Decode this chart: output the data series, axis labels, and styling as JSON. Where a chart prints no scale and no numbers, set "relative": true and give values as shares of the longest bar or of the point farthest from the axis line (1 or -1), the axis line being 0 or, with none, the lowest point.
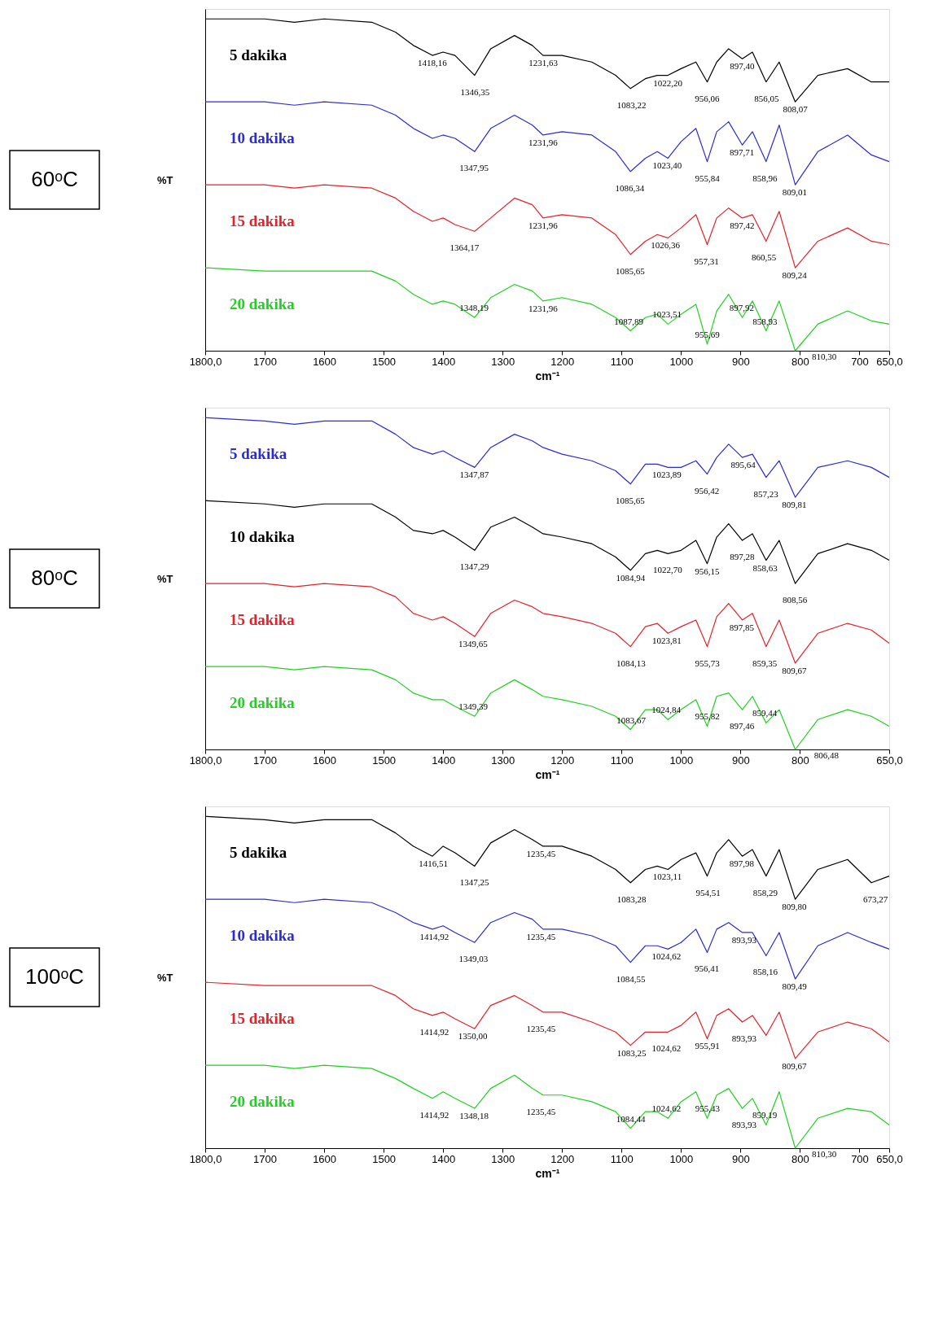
{
  "chart_data": [
    {
      "type": "line",
      "title": "60ᵒC",
      "xlabel": "cm⁻¹",
      "ylabel": "%T",
      "relative": true,
      "legend": false,
      "grid": false,
      "xlim": [
        1800,
        650
      ],
      "xticks": [
        {
          "value": 1800,
          "label": "1800,0"
        },
        1700,
        1600,
        1500,
        1400,
        1300,
        1200,
        1100,
        1000,
        900,
        800,
        700,
        {
          "value": 650,
          "label": "650,0"
        }
      ],
      "x": [
        1800,
        1700,
        1650,
        1600,
        1520,
        1480,
        1450,
        1418,
        1400,
        1380,
        1347,
        1320,
        1280,
        1250,
        1232,
        1200,
        1150,
        1110,
        1085,
        1060,
        1040,
        1022,
        1000,
        975,
        956,
        940,
        920,
        897,
        880,
        857,
        835,
        808,
        770,
        720,
        680,
        650
      ],
      "series": [
        {
          "name": "5 dakika",
          "color": "#000000",
          "values": [
            1.0,
            1.0,
            0.99,
            1.0,
            0.99,
            0.96,
            0.92,
            0.89,
            0.9,
            0.89,
            0.83,
            0.91,
            0.95,
            0.92,
            0.89,
            0.89,
            0.87,
            0.83,
            0.79,
            0.82,
            0.83,
            0.83,
            0.85,
            0.87,
            0.81,
            0.87,
            0.91,
            0.88,
            0.9,
            0.81,
            0.87,
            0.75,
            0.83,
            0.85,
            0.81,
            0.81
          ]
        },
        {
          "name": "10 dakika",
          "color": "#2b2bd9",
          "values": [
            0.75,
            0.75,
            0.74,
            0.75,
            0.74,
            0.71,
            0.67,
            0.64,
            0.65,
            0.64,
            0.6,
            0.67,
            0.71,
            0.68,
            0.65,
            0.66,
            0.65,
            0.6,
            0.54,
            0.58,
            0.6,
            0.58,
            0.63,
            0.67,
            0.57,
            0.66,
            0.69,
            0.62,
            0.66,
            0.57,
            0.68,
            0.5,
            0.6,
            0.65,
            0.59,
            0.57
          ]
        },
        {
          "name": "15 dakika",
          "color": "#e8202a",
          "values": [
            0.5,
            0.5,
            0.49,
            0.5,
            0.49,
            0.46,
            0.42,
            0.39,
            0.4,
            0.38,
            0.36,
            0.4,
            0.46,
            0.44,
            0.4,
            0.41,
            0.4,
            0.35,
            0.29,
            0.33,
            0.35,
            0.34,
            0.37,
            0.41,
            0.32,
            0.4,
            0.43,
            0.4,
            0.41,
            0.33,
            0.42,
            0.25,
            0.33,
            0.37,
            0.33,
            0.32
          ]
        },
        {
          "name": "20 dakika",
          "color": "#1fd21f",
          "values": [
            0.25,
            0.24,
            0.24,
            0.24,
            0.24,
            0.21,
            0.17,
            0.14,
            0.15,
            0.14,
            0.1,
            0.16,
            0.2,
            0.18,
            0.15,
            0.16,
            0.14,
            0.1,
            0.06,
            0.1,
            0.11,
            0.08,
            0.11,
            0.14,
            0.02,
            0.12,
            0.17,
            0.1,
            0.15,
            0.06,
            0.15,
            0.0,
            0.08,
            0.12,
            0.09,
            0.08
          ]
        }
      ],
      "annotations": [
        {
          "text": "1418,16",
          "x": 1418.16,
          "y": 0.89
        },
        {
          "text": "1346,35",
          "x": 1346.35,
          "y": 0.83
        },
        {
          "text": "1231,63",
          "x": 1231.63,
          "y": 0.89
        },
        {
          "text": "1083,22",
          "x": 1083.22,
          "y": 0.79
        },
        {
          "text": "1022,20",
          "x": 1022.2,
          "y": 0.83
        },
        {
          "text": "956,06",
          "x": 956.06,
          "y": 0.81
        },
        {
          "text": "897,40",
          "x": 897.4,
          "y": 0.88
        },
        {
          "text": "856,05",
          "x": 856.05,
          "y": 0.81
        },
        {
          "text": "808,07",
          "x": 808.07,
          "y": 0.75
        },
        {
          "text": "1347,95",
          "x": 1347.95,
          "y": 0.6
        },
        {
          "text": "1231,96",
          "x": 1231.96,
          "y": 0.65
        },
        {
          "text": "1086,34",
          "x": 1086.34,
          "y": 0.54
        },
        {
          "text": "1023,40",
          "x": 1023.4,
          "y": 0.58
        },
        {
          "text": "955,84",
          "x": 955.84,
          "y": 0.57
        },
        {
          "text": "897,71",
          "x": 897.71,
          "y": 0.62
        },
        {
          "text": "858,96",
          "x": 858.96,
          "y": 0.57
        },
        {
          "text": "809,01",
          "x": 809.01,
          "y": 0.5
        },
        {
          "text": "1364,17",
          "x": 1364.17,
          "y": 0.36
        },
        {
          "text": "1231,96",
          "x": 1231.96,
          "y": 0.4
        },
        {
          "text": "1085,65",
          "x": 1085.65,
          "y": 0.29
        },
        {
          "text": "1026,36",
          "x": 1026.36,
          "y": 0.34
        },
        {
          "text": "957,31",
          "x": 957.31,
          "y": 0.32
        },
        {
          "text": "897,42",
          "x": 897.42,
          "y": 0.4
        },
        {
          "text": "860,55",
          "x": 860.55,
          "y": 0.33
        },
        {
          "text": "809,24",
          "x": 809.24,
          "y": 0.25
        },
        {
          "text": "1348,19",
          "x": 1348.19,
          "y": 0.1
        },
        {
          "text": "1231,96",
          "x": 1231.96,
          "y": 0.15
        },
        {
          "text": "1087,89",
          "x": 1087.89,
          "y": 0.06
        },
        {
          "text": "1023,51",
          "x": 1023.51,
          "y": 0.08
        },
        {
          "text": "955,69",
          "x": 955.69,
          "y": 0.02
        },
        {
          "text": "897,92",
          "x": 897.92,
          "y": 0.1
        },
        {
          "text": "858,93",
          "x": 858.93,
          "y": 0.06
        },
        {
          "text": "810,30",
          "x": 810.3,
          "y": 0.0
        }
      ]
    },
    {
      "type": "line",
      "title": "80ᵒC",
      "xlabel": "cm⁻¹",
      "ylabel": "%T",
      "relative": true,
      "legend": false,
      "grid": false,
      "xlim": [
        1800,
        650
      ],
      "xticks": [
        {
          "value": 1800,
          "label": "1800,0"
        },
        1700,
        1600,
        1500,
        1400,
        1300,
        1200,
        1100,
        1000,
        900,
        800,
        {
          "value": 650,
          "label": "650,0"
        }
      ],
      "x": [
        1800,
        1700,
        1650,
        1600,
        1520,
        1480,
        1450,
        1418,
        1400,
        1380,
        1347,
        1320,
        1280,
        1250,
        1232,
        1200,
        1150,
        1110,
        1085,
        1060,
        1040,
        1022,
        1000,
        975,
        956,
        940,
        920,
        897,
        880,
        857,
        835,
        808,
        770,
        720,
        680,
        650
      ],
      "series": [
        {
          "name": "5 dakika",
          "color": "#2b2bd9",
          "values": [
            1.0,
            0.99,
            0.98,
            0.99,
            0.99,
            0.95,
            0.91,
            0.89,
            0.9,
            0.88,
            0.85,
            0.91,
            0.95,
            0.93,
            0.91,
            0.89,
            0.87,
            0.84,
            0.8,
            0.86,
            0.86,
            0.85,
            0.85,
            0.87,
            0.83,
            0.88,
            0.92,
            0.88,
            0.89,
            0.82,
            0.87,
            0.76,
            0.85,
            0.87,
            0.85,
            0.82
          ]
        },
        {
          "name": "10 dakika",
          "color": "#000000",
          "values": [
            0.75,
            0.74,
            0.73,
            0.74,
            0.74,
            0.7,
            0.66,
            0.65,
            0.66,
            0.64,
            0.6,
            0.67,
            0.7,
            0.67,
            0.65,
            0.64,
            0.62,
            0.58,
            0.54,
            0.59,
            0.6,
            0.59,
            0.6,
            0.63,
            0.56,
            0.64,
            0.68,
            0.63,
            0.65,
            0.57,
            0.63,
            0.5,
            0.59,
            0.62,
            0.6,
            0.57
          ]
        },
        {
          "name": "15 dakika",
          "color": "#e8202a",
          "values": [
            0.5,
            0.5,
            0.49,
            0.5,
            0.49,
            0.46,
            0.41,
            0.39,
            0.4,
            0.38,
            0.34,
            0.41,
            0.45,
            0.43,
            0.41,
            0.4,
            0.38,
            0.35,
            0.31,
            0.37,
            0.38,
            0.35,
            0.37,
            0.39,
            0.31,
            0.4,
            0.44,
            0.39,
            0.41,
            0.31,
            0.39,
            0.26,
            0.35,
            0.38,
            0.36,
            0.32
          ]
        },
        {
          "name": "20 dakika",
          "color": "#1fd21f",
          "values": [
            0.25,
            0.25,
            0.24,
            0.25,
            0.24,
            0.21,
            0.17,
            0.15,
            0.15,
            0.13,
            0.1,
            0.17,
            0.21,
            0.18,
            0.16,
            0.15,
            0.13,
            0.1,
            0.06,
            0.12,
            0.12,
            0.09,
            0.12,
            0.15,
            0.07,
            0.16,
            0.17,
            0.12,
            0.16,
            0.08,
            0.12,
            0.0,
            0.09,
            0.12,
            0.1,
            0.07
          ]
        }
      ],
      "annotations": [
        {
          "text": "1347,87",
          "x": 1347.87,
          "y": 0.85
        },
        {
          "text": "1085,65",
          "x": 1085.65,
          "y": 0.8
        },
        {
          "text": "1023,89",
          "x": 1023.89,
          "y": 0.85
        },
        {
          "text": "956,42",
          "x": 956.42,
          "y": 0.83
        },
        {
          "text": "895,64",
          "x": 895.64,
          "y": 0.88
        },
        {
          "text": "857,23",
          "x": 857.23,
          "y": 0.82
        },
        {
          "text": "809,81",
          "x": 809.81,
          "y": 0.76
        },
        {
          "text": "1347,29",
          "x": 1347.29,
          "y": 0.6
        },
        {
          "text": "1084,94",
          "x": 1084.94,
          "y": 0.54
        },
        {
          "text": "1022,70",
          "x": 1022.7,
          "y": 0.59
        },
        {
          "text": "956,15",
          "x": 956.15,
          "y": 0.56
        },
        {
          "text": "897,28",
          "x": 897.28,
          "y": 0.63
        },
        {
          "text": "858,63",
          "x": 858.63,
          "y": 0.57
        },
        {
          "text": "808,56",
          "x": 808.56,
          "y": 0.5
        },
        {
          "text": "1349,65",
          "x": 1349.65,
          "y": 0.34
        },
        {
          "text": "1084,13",
          "x": 1084.13,
          "y": 0.31
        },
        {
          "text": "1023,81",
          "x": 1023.81,
          "y": 0.35
        },
        {
          "text": "955,73",
          "x": 955.73,
          "y": 0.31
        },
        {
          "text": "897,85",
          "x": 897.85,
          "y": 0.39
        },
        {
          "text": "859,35",
          "x": 859.35,
          "y": 0.31
        },
        {
          "text": "809,67",
          "x": 809.67,
          "y": 0.26
        },
        {
          "text": "1349,39",
          "x": 1349.39,
          "y": 0.1
        },
        {
          "text": "1083,67",
          "x": 1083.67,
          "y": 0.06
        },
        {
          "text": "1024,84",
          "x": 1024.84,
          "y": 0.09
        },
        {
          "text": "955,82",
          "x": 955.82,
          "y": 0.07
        },
        {
          "text": "897,46",
          "x": 897.46,
          "y": 0.12
        },
        {
          "text": "859,44",
          "x": 859.44,
          "y": 0.08
        },
        {
          "text": "806,48",
          "x": 806.48,
          "y": 0.0
        }
      ]
    },
    {
      "type": "line",
      "title": "100ᵒC",
      "xlabel": "cm⁻¹",
      "ylabel": "%T",
      "relative": true,
      "legend": false,
      "grid": false,
      "xlim": [
        1800,
        650
      ],
      "xticks": [
        {
          "value": 1800,
          "label": "1800,0"
        },
        1700,
        1600,
        1500,
        1400,
        1300,
        1200,
        1100,
        1000,
        900,
        800,
        700,
        {
          "value": 650,
          "label": "650,0"
        }
      ],
      "x": [
        1800,
        1700,
        1650,
        1600,
        1520,
        1480,
        1450,
        1418,
        1400,
        1380,
        1347,
        1320,
        1280,
        1250,
        1232,
        1200,
        1150,
        1110,
        1085,
        1060,
        1040,
        1022,
        1000,
        975,
        956,
        940,
        920,
        897,
        880,
        857,
        835,
        808,
        770,
        720,
        680,
        650
      ],
      "series": [
        {
          "name": "5 dakika",
          "color": "#000000",
          "values": [
            1.0,
            0.99,
            0.98,
            0.99,
            0.99,
            0.95,
            0.91,
            0.88,
            0.91,
            0.89,
            0.85,
            0.92,
            0.96,
            0.93,
            0.91,
            0.91,
            0.88,
            0.84,
            0.8,
            0.84,
            0.85,
            0.84,
            0.87,
            0.89,
            0.82,
            0.89,
            0.93,
            0.88,
            0.9,
            0.82,
            0.9,
            0.75,
            0.84,
            0.87,
            0.8,
            0.82
          ]
        },
        {
          "name": "10 dakika",
          "color": "#2b2bd9",
          "values": [
            0.75,
            0.75,
            0.74,
            0.75,
            0.74,
            0.71,
            0.68,
            0.66,
            0.67,
            0.65,
            0.62,
            0.68,
            0.71,
            0.69,
            0.66,
            0.66,
            0.64,
            0.61,
            0.56,
            0.61,
            0.61,
            0.6,
            0.62,
            0.66,
            0.59,
            0.66,
            0.68,
            0.65,
            0.65,
            0.58,
            0.65,
            0.51,
            0.61,
            0.65,
            0.62,
            0.6
          ]
        },
        {
          "name": "15 dakika",
          "color": "#e8202a",
          "values": [
            0.5,
            0.49,
            0.49,
            0.49,
            0.49,
            0.46,
            0.42,
            0.4,
            0.41,
            0.39,
            0.36,
            0.43,
            0.46,
            0.43,
            0.41,
            0.41,
            0.38,
            0.35,
            0.31,
            0.35,
            0.35,
            0.35,
            0.37,
            0.41,
            0.33,
            0.4,
            0.42,
            0.38,
            0.4,
            0.34,
            0.41,
            0.27,
            0.35,
            0.38,
            0.36,
            0.32
          ]
        },
        {
          "name": "20 dakika",
          "color": "#1fd21f",
          "values": [
            0.25,
            0.25,
            0.24,
            0.25,
            0.24,
            0.21,
            0.18,
            0.15,
            0.17,
            0.15,
            0.12,
            0.18,
            0.22,
            0.18,
            0.16,
            0.16,
            0.14,
            0.11,
            0.06,
            0.11,
            0.11,
            0.09,
            0.14,
            0.17,
            0.09,
            0.16,
            0.18,
            0.12,
            0.15,
            0.07,
            0.17,
            0.0,
            0.09,
            0.12,
            0.11,
            0.07
          ]
        }
      ],
      "annotations": [
        {
          "text": "1416,51",
          "x": 1416.51,
          "y": 0.88
        },
        {
          "text": "1347,25",
          "x": 1347.25,
          "y": 0.85
        },
        {
          "text": "1235,45",
          "x": 1235.45,
          "y": 0.91
        },
        {
          "text": "1083,28",
          "x": 1083.28,
          "y": 0.8
        },
        {
          "text": "1023,11",
          "x": 1023.11,
          "y": 0.84
        },
        {
          "text": "954,51",
          "x": 954.51,
          "y": 0.82
        },
        {
          "text": "897,98",
          "x": 897.98,
          "y": 0.88
        },
        {
          "text": "858,29",
          "x": 858.29,
          "y": 0.82
        },
        {
          "text": "809,80",
          "x": 809.8,
          "y": 0.75
        },
        {
          "text": "673,27",
          "x": 673.27,
          "y": 0.8
        },
        {
          "text": "1414,92",
          "x": 1414.92,
          "y": 0.66
        },
        {
          "text": "1349,03",
          "x": 1349.03,
          "y": 0.62
        },
        {
          "text": "1235,45",
          "x": 1235.45,
          "y": 0.66
        },
        {
          "text": "1084,55",
          "x": 1084.55,
          "y": 0.56
        },
        {
          "text": "1024,62",
          "x": 1024.62,
          "y": 0.6
        },
        {
          "text": "956,41",
          "x": 956.41,
          "y": 0.59
        },
        {
          "text": "893,93",
          "x": 893.93,
          "y": 0.65
        },
        {
          "text": "858,16",
          "x": 858.16,
          "y": 0.58
        },
        {
          "text": "809,49",
          "x": 809.49,
          "y": 0.51
        },
        {
          "text": "1414,92",
          "x": 1414.92,
          "y": 0.4
        },
        {
          "text": "1350,00",
          "x": 1350.0,
          "y": 0.36
        },
        {
          "text": "1235,45",
          "x": 1235.45,
          "y": 0.41
        },
        {
          "text": "1083,25",
          "x": 1083.25,
          "y": 0.31
        },
        {
          "text": "1024,62",
          "x": 1024.62,
          "y": 0.35
        },
        {
          "text": "955,91",
          "x": 955.91,
          "y": 0.33
        },
        {
          "text": "893,93",
          "x": 893.93,
          "y": 0.38
        },
        {
          "text": "809,67",
          "x": 809.67,
          "y": 0.27
        },
        {
          "text": "1414,92",
          "x": 1414.92,
          "y": 0.15
        },
        {
          "text": "1348,18",
          "x": 1348.18,
          "y": 0.12
        },
        {
          "text": "1235,45",
          "x": 1235.45,
          "y": 0.16
        },
        {
          "text": "1084,44",
          "x": 1084.44,
          "y": 0.06
        },
        {
          "text": "1024,62",
          "x": 1024.62,
          "y": 0.09
        },
        {
          "text": "955,43",
          "x": 955.43,
          "y": 0.09
        },
        {
          "text": "893,93",
          "x": 893.93,
          "y": 0.12
        },
        {
          "text": "859,19",
          "x": 859.19,
          "y": 0.07
        },
        {
          "text": "810,30",
          "x": 810.3,
          "y": 0.0
        }
      ]
    }
  ]
}
